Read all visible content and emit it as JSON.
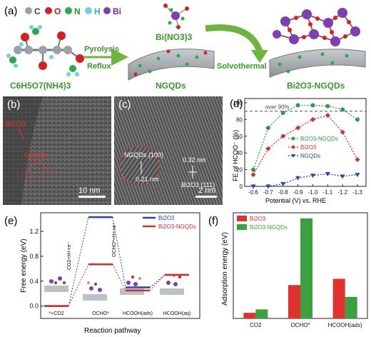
{
  "panel_a": {
    "label": "(a)",
    "legend": [
      {
        "symbol": "C",
        "color": "#9aa3a8"
      },
      {
        "symbol": "O",
        "color": "#d42020"
      },
      {
        "symbol": "N",
        "color": "#2fa84a"
      },
      {
        "symbol": "H",
        "color": "#6fd0e0"
      },
      {
        "symbol": "Bi",
        "color": "#7e3fb3"
      }
    ],
    "precursor_formula": "C6H5O7(NH4)3",
    "step1_top": "Pyrolysis",
    "step1_bottom": "Reflux",
    "intermediate_label": "NGQDs",
    "reagent_label": "Bi(NO3)3",
    "step2_label": "Solvothermal",
    "product_label": "Bi2O3-NGQDs",
    "colors": {
      "green_text": "#3a9a2a",
      "arrow": "#6fb43c"
    }
  },
  "panel_b": {
    "label": "(b)",
    "annotations": [
      "Bi2O3",
      "NGQDs"
    ],
    "scale_bar": "10 nm"
  },
  "panel_c": {
    "label": "(c)",
    "annotations": [
      "NGQDs (100)",
      "0.21 nm",
      "0.32 nm",
      "Bi2O3 (111)"
    ],
    "scale_bar": "2 nm"
  },
  "panel_d": {
    "label": "(d)",
    "chart_data": {
      "type": "line",
      "ylabel": "FE of HCOO⁻ (%)",
      "xlabel": "Potential (V) vs. RHE",
      "x": [
        -0.6,
        -0.7,
        -0.8,
        -0.9,
        -1.0,
        -1.1,
        -1.2,
        -1.3
      ],
      "xticks": [
        "-0.6",
        "-0.7",
        "-0.8",
        "-0.9",
        "-1.0",
        "-1.1",
        "-1.2",
        "-1.3"
      ],
      "ylim": [
        0,
        100
      ],
      "yticks": [
        0,
        20,
        40,
        60,
        80,
        100
      ],
      "threshold": 90,
      "threshold_label": "over 90%",
      "series": [
        {
          "name": "Bi2O3-NGQDs",
          "color": "#2e9c49",
          "marker": "circle",
          "values": [
            20,
            70,
            88,
            97,
            97,
            96,
            92,
            80
          ]
        },
        {
          "name": "Bi2O3",
          "color": "#d62e2e",
          "marker": "diamond",
          "values": [
            14,
            45,
            60,
            70,
            80,
            85,
            65,
            32
          ]
        },
        {
          "name": "NGQDs",
          "color": "#2446b8",
          "marker": "triangle",
          "values": [
            0,
            0,
            3,
            10,
            13,
            15,
            12,
            14
          ]
        }
      ],
      "legend_position": "center-right"
    }
  },
  "panel_e": {
    "label": "(e)",
    "chart_data": {
      "type": "line",
      "ylabel": "Free energy (eV)",
      "xlabel": "Reaction pathway",
      "categories": [
        "*+CO2",
        "OCHO*",
        "HCOOH(ads)",
        "HCOOH(aq)"
      ],
      "ylim": [
        -0.2,
        1.5
      ],
      "yticks": [
        "0.0",
        "0.4",
        "0.8",
        "1.2"
      ],
      "ytick_values": [
        0.0,
        0.4,
        0.8,
        1.2
      ],
      "series": [
        {
          "name": "Bi2O3",
          "color": "#2446b8",
          "values": [
            0.0,
            1.43,
            0.3,
            0.5
          ]
        },
        {
          "name": "Bi2O3-NGQDs",
          "color": "#d62e2e",
          "values": [
            0.0,
            0.67,
            0.25,
            0.5
          ]
        }
      ],
      "step_labels": [
        "CO2+H++e⁻",
        "OCHO*+H++e⁻"
      ],
      "legend_position": "top-right"
    }
  },
  "panel_f": {
    "label": "(f)",
    "chart_data": {
      "type": "bar",
      "ylabel": "Adsorption energy (eV)",
      "categories": [
        "CO2",
        "OCHO*",
        "HCOOH(ads)"
      ],
      "ylim": [
        0,
        1.5
      ],
      "series": [
        {
          "name": "Bi2O3",
          "color": "#e0312c",
          "values": [
            0.08,
            0.48,
            0.57
          ]
        },
        {
          "name": "Bi2O3-NGQDs",
          "color": "#3aa040",
          "values": [
            0.13,
            1.44,
            0.31
          ]
        }
      ],
      "legend_position": "top-left"
    }
  }
}
